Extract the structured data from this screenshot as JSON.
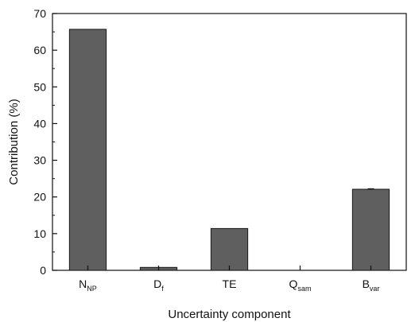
{
  "chart_data": {
    "type": "bar",
    "categories": [
      {
        "main": "N",
        "sub": "NP"
      },
      {
        "main": "D",
        "sub": "f"
      },
      {
        "main": "TE",
        "sub": ""
      },
      {
        "main": "Q",
        "sub": "sam"
      },
      {
        "main": "B",
        "sub": "var"
      }
    ],
    "values": [
      65.7,
      0.8,
      11.4,
      0,
      22.1
    ],
    "error": [
      0,
      0,
      0,
      0,
      0.15
    ],
    "xlabel": "Uncertainty component",
    "ylabel": "Contribution (%)",
    "ylim": [
      0,
      70
    ],
    "yticks": [
      0,
      10,
      20,
      30,
      40,
      50,
      60,
      70
    ],
    "grid": false,
    "bar_color": "#5f5f5f",
    "bar_edge_color": "#1a1a1a"
  }
}
